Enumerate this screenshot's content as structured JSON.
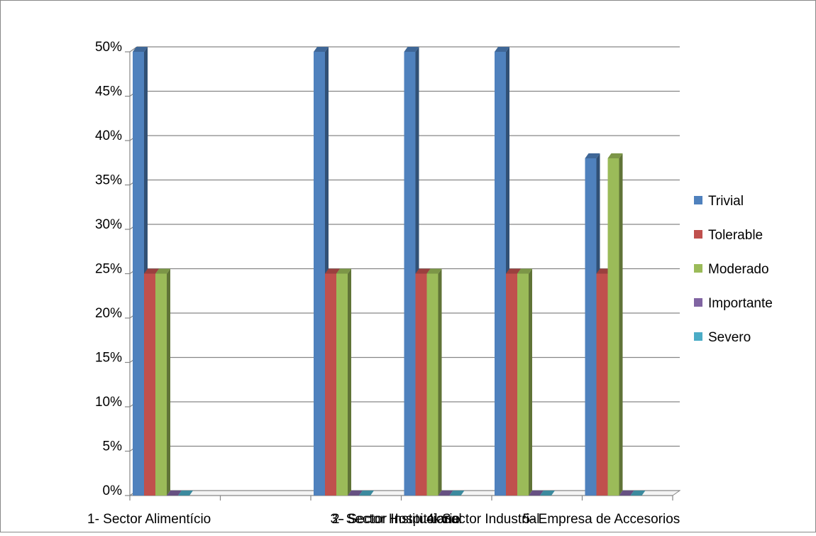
{
  "chart_data": {
    "type": "bar",
    "title": "",
    "xlabel": "",
    "ylabel": "",
    "ylim": [
      0,
      50
    ],
    "y_ticks": [
      "0%",
      "5%",
      "10%",
      "15%",
      "20%",
      "25%",
      "30%",
      "35%",
      "40%",
      "45%",
      "50%"
    ],
    "y_tick_values": [
      0,
      5,
      10,
      15,
      20,
      25,
      30,
      35,
      40,
      45,
      50
    ],
    "grid": true,
    "legend_position": "right",
    "categories": [
      "1- Sector Alimentício",
      "",
      "2- Sector  Institucional",
      "3- Sector Hospitalario",
      "4- Sector Industrial",
      "5- Empresa de Accesorios"
    ],
    "series": [
      {
        "name": "Trivial",
        "color": "#4F81BD",
        "values": [
          50,
          null,
          50,
          50,
          50,
          38
        ]
      },
      {
        "name": "Tolerable",
        "color": "#C0504D",
        "values": [
          25,
          null,
          25,
          25,
          25,
          25
        ]
      },
      {
        "name": "Moderado",
        "color": "#9BBB59",
        "values": [
          25,
          null,
          25,
          25,
          25,
          38
        ]
      },
      {
        "name": "Importante",
        "color": "#8064A2",
        "values": [
          0,
          null,
          0,
          0,
          0,
          0
        ]
      },
      {
        "name": "Severo",
        "color": "#4BACC6",
        "values": [
          0,
          null,
          0,
          0,
          0,
          0
        ]
      }
    ]
  }
}
